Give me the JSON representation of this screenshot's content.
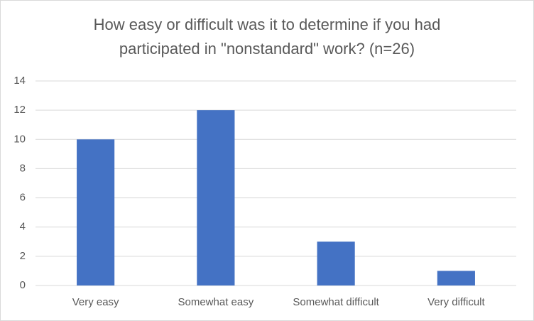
{
  "chart_data": {
    "type": "bar",
    "title": "How easy or difficult was it to determine if you had participated in \"nonstandard\" work? (n=26)",
    "categories": [
      "Very easy",
      "Somewhat easy",
      "Somewhat difficult",
      "Very difficult"
    ],
    "values": [
      10,
      12,
      3,
      1
    ],
    "color": "#4472c4",
    "ylim": [
      0,
      14
    ],
    "yticks": [
      0,
      2,
      4,
      6,
      8,
      10,
      12,
      14
    ],
    "grid": true
  }
}
